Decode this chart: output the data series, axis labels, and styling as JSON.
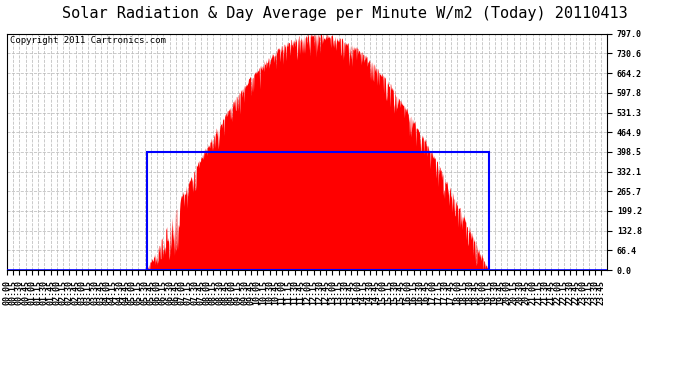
{
  "title": "Solar Radiation & Day Average per Minute W/m2 (Today) 20110413",
  "copyright": "Copyright 2011 Cartronics.com",
  "ymax": 797.0,
  "yticks": [
    0.0,
    66.4,
    132.8,
    199.2,
    265.7,
    332.1,
    398.5,
    464.9,
    531.3,
    597.8,
    664.2,
    730.6,
    797.0
  ],
  "bar_color": "#FF0000",
  "rect_color": "#0000FF",
  "background_color": "#FFFFFF",
  "grid_color": "#BBBBBB",
  "title_fontsize": 11,
  "copyright_fontsize": 6.5,
  "tick_fontsize": 6,
  "total_minutes": 1440,
  "sunrise_minute": 335,
  "sunset_minute": 1155,
  "day_avg": 398.5,
  "peak_value": 797.0
}
